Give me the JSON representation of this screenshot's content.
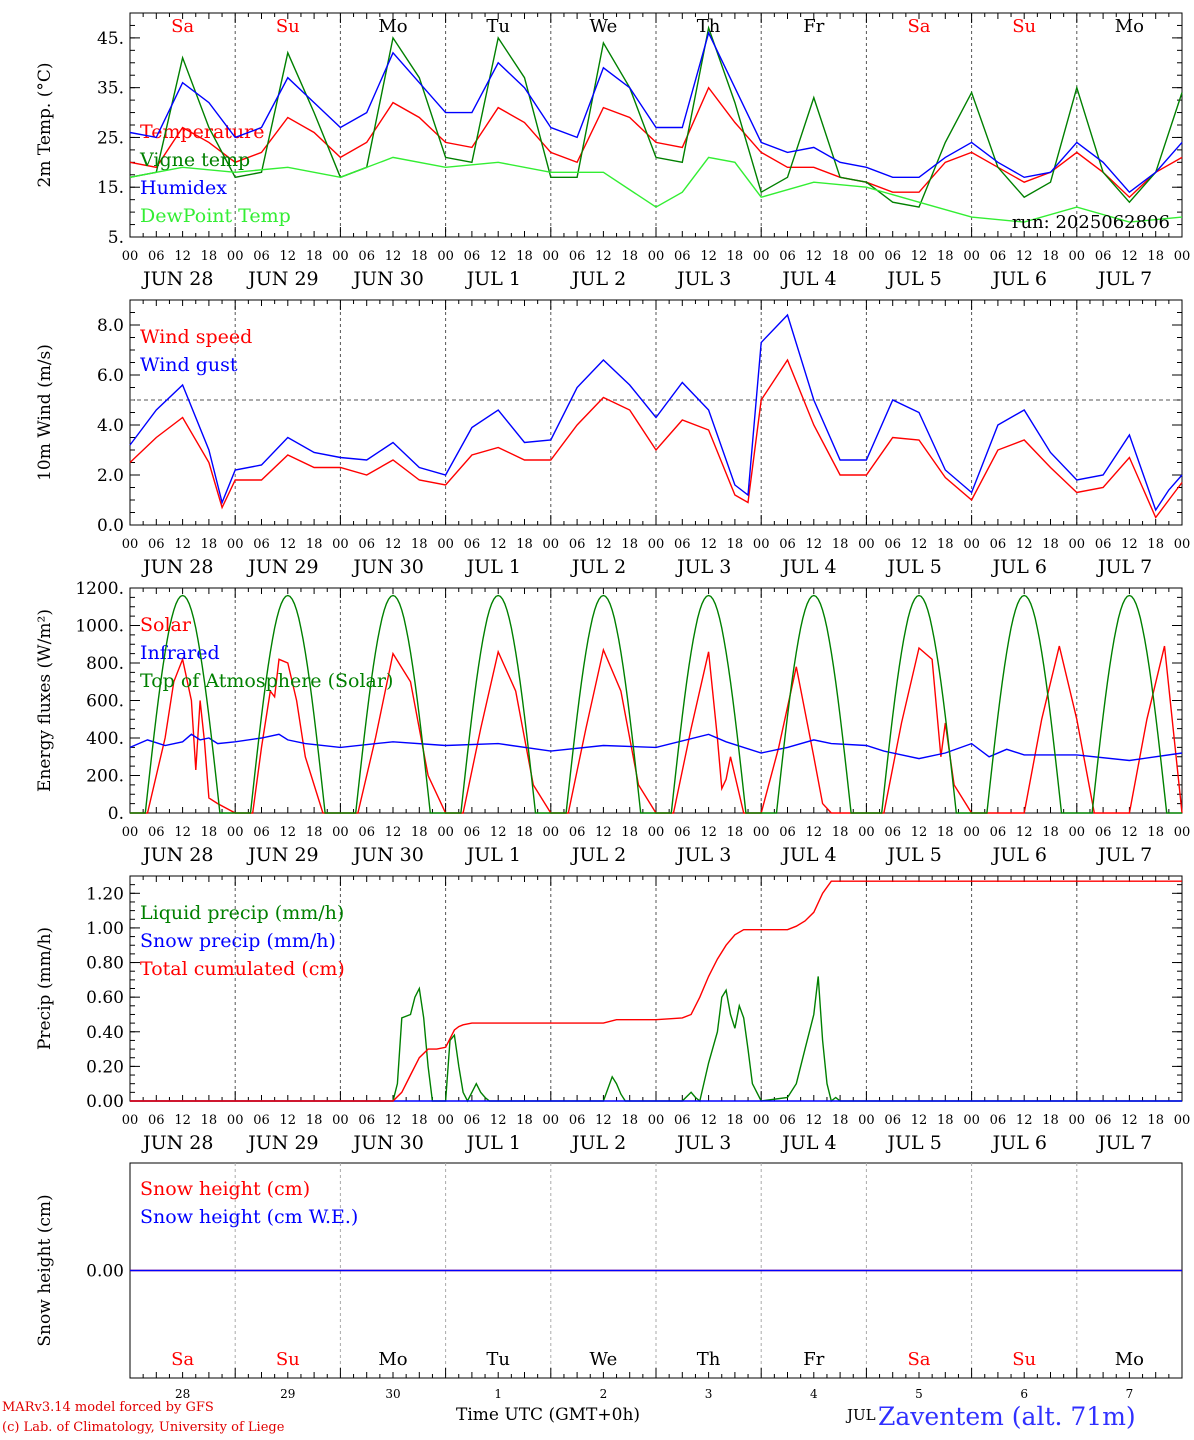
{
  "run_label": "run: 2025062806",
  "footer": {
    "credit_line1": "MARv3.14 model forced by GFS",
    "credit_line2": "(c) Lab. of Climatology, University of Liege",
    "x_title": "Time UTC (GMT+0h)",
    "station": "Zaventem (alt. 71m)",
    "month_label": "JUL"
  },
  "day_names": [
    "Sa",
    "Su",
    "Mo",
    "Tu",
    "We",
    "Th",
    "Fr",
    "Sa",
    "Su",
    "Mo"
  ],
  "weekend_days": [
    0,
    1,
    7,
    8
  ],
  "date_labels": [
    "JUN 28",
    "JUN 29",
    "JUN 30",
    "JUL  1",
    "JUL  2",
    "JUL  3",
    "JUL  4",
    "JUL  5",
    "JUL  6",
    "JUL  7"
  ],
  "hour_ticks": [
    "00",
    "06",
    "12",
    "18"
  ],
  "bottom_day_numbers": [
    "28",
    "29",
    "30",
    "1",
    "2",
    "3",
    "4",
    "5",
    "6",
    "7"
  ],
  "colors": {
    "red": "#ff0000",
    "green": "#008000",
    "blue": "#0000ff",
    "lightgreen": "#33ee33",
    "grid": "#555555"
  },
  "chart_data": [
    {
      "type": "line",
      "ylabel": "2m Temp. (°C)",
      "ylim": [
        5,
        50
      ],
      "yticks": [
        5,
        15,
        25,
        35,
        45
      ],
      "ytick_labels": [
        "5.",
        "15.",
        "25.",
        "35.",
        "45."
      ],
      "x_unit": "hours since JUN 28 00 UTC",
      "series": [
        {
          "name": "Temperature",
          "color": "red",
          "x": [
            0,
            6,
            12,
            18,
            24,
            30,
            36,
            42,
            48,
            54,
            60,
            66,
            72,
            78,
            84,
            90,
            96,
            102,
            108,
            114,
            120,
            126,
            132,
            138,
            144,
            150,
            156,
            162,
            168,
            174,
            180,
            186,
            192,
            198,
            204,
            210,
            216,
            222,
            228,
            234,
            240
          ],
          "y": [
            20,
            19,
            27,
            24,
            20,
            22,
            29,
            26,
            21,
            24,
            32,
            29,
            24,
            23,
            31,
            28,
            22,
            20,
            31,
            29,
            24,
            23,
            35,
            28,
            22,
            19,
            19,
            17,
            16,
            14,
            14,
            20,
            22,
            19,
            16,
            18,
            22,
            18,
            13,
            18,
            21
          ]
        },
        {
          "name": "Vigne temp",
          "color": "green",
          "x": [
            0,
            6,
            12,
            18,
            24,
            30,
            36,
            42,
            48,
            54,
            60,
            66,
            72,
            78,
            84,
            90,
            96,
            102,
            108,
            114,
            120,
            126,
            132,
            138,
            144,
            150,
            156,
            162,
            168,
            174,
            180,
            186,
            192,
            198,
            204,
            210,
            216,
            222,
            228,
            234,
            240
          ],
          "y": [
            17,
            18,
            41,
            27,
            17,
            18,
            42,
            30,
            17,
            19,
            45,
            37,
            21,
            20,
            45,
            37,
            17,
            17,
            44,
            35,
            21,
            20,
            47,
            32,
            14,
            17,
            33,
            17,
            16,
            12,
            11,
            24,
            34,
            19,
            13,
            16,
            35,
            18,
            12,
            18,
            34
          ]
        },
        {
          "name": "Humidex",
          "color": "blue",
          "x": [
            0,
            6,
            12,
            18,
            24,
            30,
            36,
            42,
            48,
            54,
            60,
            66,
            72,
            78,
            84,
            90,
            96,
            102,
            108,
            114,
            120,
            126,
            132,
            138,
            144,
            150,
            156,
            162,
            168,
            174,
            180,
            186,
            192,
            198,
            204,
            210,
            216,
            222,
            228,
            234,
            240
          ],
          "y": [
            26,
            25,
            36,
            32,
            25,
            27,
            37,
            32,
            27,
            30,
            42,
            36,
            30,
            30,
            40,
            35,
            27,
            25,
            39,
            35,
            27,
            27,
            46,
            35,
            24,
            22,
            23,
            20,
            19,
            17,
            17,
            21,
            24,
            20,
            17,
            18,
            24,
            20,
            14,
            18,
            24
          ]
        },
        {
          "name": "DewPoint Temp",
          "color": "lightgreen",
          "x": [
            0,
            12,
            24,
            36,
            48,
            60,
            72,
            84,
            96,
            108,
            120,
            126,
            132,
            138,
            144,
            156,
            168,
            180,
            192,
            204,
            216,
            228,
            240
          ],
          "y": [
            17,
            19,
            18,
            19,
            17,
            21,
            19,
            20,
            18,
            18,
            11,
            14,
            21,
            20,
            13,
            16,
            15,
            12,
            9,
            8,
            11,
            8,
            9
          ]
        }
      ]
    },
    {
      "type": "line",
      "ylabel": "10m Wind (m/s)",
      "ylim": [
        0,
        9
      ],
      "yticks": [
        0,
        2,
        4,
        6,
        8
      ],
      "ytick_labels": [
        "0.0",
        "2.0",
        "4.0",
        "6.0",
        "8.0"
      ],
      "ref_line": 5,
      "series": [
        {
          "name": "Wind speed",
          "color": "red",
          "x": [
            0,
            6,
            12,
            18,
            21,
            24,
            30,
            36,
            42,
            48,
            54,
            60,
            66,
            72,
            78,
            84,
            90,
            96,
            102,
            108,
            114,
            120,
            126,
            132,
            138,
            141,
            144,
            150,
            156,
            162,
            168,
            174,
            180,
            186,
            192,
            198,
            204,
            210,
            216,
            222,
            228,
            234,
            237,
            240
          ],
          "y": [
            2.5,
            3.5,
            4.3,
            2.5,
            0.7,
            1.8,
            1.8,
            2.8,
            2.3,
            2.3,
            2,
            2.6,
            1.8,
            1.6,
            2.8,
            3.1,
            2.6,
            2.6,
            4,
            5.1,
            4.6,
            3,
            4.2,
            3.8,
            1.2,
            0.9,
            5,
            6.6,
            4,
            2,
            2,
            3.5,
            3.4,
            1.9,
            1,
            3,
            3.4,
            2.3,
            1.3,
            1.5,
            2.7,
            0.3,
            1,
            1.7
          ]
        },
        {
          "name": "Wind gust",
          "color": "blue",
          "x": [
            0,
            6,
            12,
            18,
            21,
            24,
            30,
            36,
            42,
            48,
            54,
            60,
            66,
            72,
            78,
            84,
            90,
            96,
            102,
            108,
            114,
            120,
            126,
            132,
            138,
            141,
            144,
            150,
            156,
            162,
            168,
            174,
            180,
            186,
            192,
            198,
            204,
            210,
            216,
            222,
            228,
            234,
            237,
            240
          ],
          "y": [
            3.2,
            4.6,
            5.6,
            3,
            0.9,
            2.2,
            2.4,
            3.5,
            2.9,
            2.7,
            2.6,
            3.3,
            2.3,
            2,
            3.9,
            4.6,
            3.3,
            3.4,
            5.5,
            6.6,
            5.6,
            4.3,
            5.7,
            4.6,
            1.6,
            1.2,
            7.3,
            8.4,
            5,
            2.6,
            2.6,
            5,
            4.5,
            2.2,
            1.3,
            4,
            4.6,
            2.9,
            1.8,
            2,
            3.6,
            0.6,
            1.4,
            2
          ]
        }
      ]
    },
    {
      "type": "line",
      "ylabel": "Energy fluxes (W/m²)",
      "ylim": [
        0,
        1200
      ],
      "yticks": [
        0,
        200,
        400,
        600,
        800,
        1000,
        1200
      ],
      "ytick_labels": [
        "0.",
        "200.",
        "400.",
        "600.",
        "800.",
        "1000.",
        "1200."
      ],
      "series": [
        {
          "name": "Solar",
          "color": "red",
          "x": [
            0,
            4,
            8,
            10,
            12,
            14,
            15,
            16,
            17,
            18,
            20,
            24,
            28,
            30,
            32,
            33,
            34,
            36,
            38,
            40,
            44,
            48,
            52,
            56,
            60,
            64,
            68,
            72,
            76,
            80,
            84,
            88,
            92,
            96,
            100,
            104,
            108,
            112,
            116,
            120,
            124,
            128,
            132,
            134,
            135,
            136,
            137,
            140,
            144,
            148,
            152,
            156,
            158,
            160,
            164,
            168,
            172,
            176,
            180,
            183,
            185,
            186,
            188,
            192,
            196,
            200,
            204,
            208,
            212,
            216,
            220,
            224,
            228,
            232,
            236,
            240
          ],
          "y": [
            0,
            0,
            400,
            700,
            820,
            600,
            230,
            600,
            380,
            80,
            50,
            0,
            0,
            350,
            650,
            620,
            820,
            800,
            600,
            300,
            0,
            0,
            0,
            400,
            850,
            700,
            200,
            0,
            0,
            450,
            860,
            650,
            150,
            0,
            0,
            450,
            870,
            650,
            150,
            0,
            0,
            450,
            860,
            400,
            130,
            180,
            300,
            0,
            0,
            350,
            780,
            300,
            50,
            0,
            0,
            0,
            0,
            480,
            880,
            820,
            300,
            480,
            150,
            0,
            0,
            0,
            0,
            500,
            890,
            500,
            0,
            0,
            0,
            500,
            890,
            0
          ]
        },
        {
          "name": "Infrared",
          "color": "blue",
          "x": [
            0,
            4,
            8,
            12,
            14,
            16,
            18,
            20,
            24,
            30,
            34,
            36,
            40,
            48,
            60,
            72,
            84,
            96,
            108,
            120,
            132,
            136,
            144,
            150,
            156,
            160,
            168,
            172,
            180,
            186,
            192,
            196,
            200,
            204,
            216,
            228,
            240
          ],
          "y": [
            350,
            390,
            360,
            380,
            420,
            390,
            400,
            370,
            380,
            400,
            420,
            390,
            370,
            350,
            380,
            360,
            370,
            330,
            360,
            350,
            420,
            380,
            320,
            350,
            390,
            370,
            360,
            330,
            290,
            320,
            370,
            300,
            340,
            310,
            310,
            280,
            320
          ]
        },
        {
          "name": "Top of Atmosphere (Solar)",
          "color": "green",
          "shape": "daily_half_sine",
          "peak": 1160,
          "sunrise_hour": 3.5,
          "sunset_hour": 20.5
        }
      ]
    },
    {
      "type": "line",
      "ylabel": "Precip (mm/h)",
      "ylim": [
        0,
        1.3
      ],
      "yticks": [
        0,
        0.2,
        0.4,
        0.6,
        0.8,
        1.0,
        1.2
      ],
      "ytick_labels": [
        "0.00",
        "0.20",
        "0.40",
        "0.60",
        "0.80",
        "1.00",
        "1.20"
      ],
      "series": [
        {
          "name": "Liquid precip (mm/h)",
          "color": "green",
          "x": [
            0,
            60,
            61,
            62,
            64,
            65,
            66,
            67,
            68,
            69,
            70,
            72,
            73,
            74,
            75,
            76,
            77,
            79,
            80,
            81,
            82,
            84,
            108,
            110,
            111,
            112,
            113,
            114,
            126,
            128,
            129,
            130,
            132,
            134,
            135,
            136,
            137,
            138,
            139,
            140,
            141,
            142,
            144,
            150,
            152,
            154,
            155,
            156,
            157,
            158,
            159,
            160,
            161,
            162,
            240
          ],
          "y": [
            0,
            0,
            0.1,
            0.48,
            0.5,
            0.6,
            0.65,
            0.48,
            0.2,
            0,
            0,
            0,
            0.35,
            0.38,
            0.2,
            0.05,
            0,
            0.1,
            0.05,
            0.02,
            0,
            0,
            0,
            0.14,
            0.1,
            0.04,
            0,
            0,
            0,
            0.05,
            0.02,
            0,
            0.22,
            0.4,
            0.6,
            0.64,
            0.5,
            0.42,
            0.55,
            0.48,
            0.3,
            0.1,
            0,
            0.02,
            0.1,
            0.3,
            0.4,
            0.5,
            0.72,
            0.35,
            0.1,
            0,
            0.02,
            0,
            0
          ]
        },
        {
          "name": "Snow precip (mm/h)",
          "color": "blue",
          "x": [
            0,
            240
          ],
          "y": [
            0,
            0
          ]
        },
        {
          "name": "Total cumulated (cm)",
          "color": "red",
          "x": [
            0,
            60,
            62,
            64,
            66,
            68,
            70,
            72,
            73,
            74,
            75,
            76,
            78,
            84,
            96,
            108,
            111,
            114,
            120,
            126,
            128,
            130,
            132,
            134,
            136,
            138,
            140,
            142,
            144,
            150,
            152,
            154,
            156,
            158,
            160,
            240
          ],
          "y": [
            0,
            0,
            0.05,
            0.15,
            0.25,
            0.3,
            0.3,
            0.31,
            0.36,
            0.41,
            0.43,
            0.44,
            0.45,
            0.45,
            0.45,
            0.45,
            0.47,
            0.47,
            0.47,
            0.48,
            0.5,
            0.6,
            0.72,
            0.82,
            0.9,
            0.96,
            0.99,
            0.99,
            0.99,
            0.99,
            1.01,
            1.04,
            1.09,
            1.2,
            1.27,
            1.27
          ]
        }
      ]
    },
    {
      "type": "line",
      "ylabel": "Snow height (cm)",
      "ylim": [
        -1,
        1
      ],
      "yticks": [
        0
      ],
      "ytick_labels": [
        "0.00"
      ],
      "series": [
        {
          "name": "Snow height (cm)",
          "color": "red",
          "x": [
            0,
            240
          ],
          "y": [
            0,
            0
          ]
        },
        {
          "name": "Snow height (cm W.E.)",
          "color": "blue",
          "x": [
            0,
            240
          ],
          "y": [
            0,
            0
          ]
        }
      ]
    }
  ]
}
